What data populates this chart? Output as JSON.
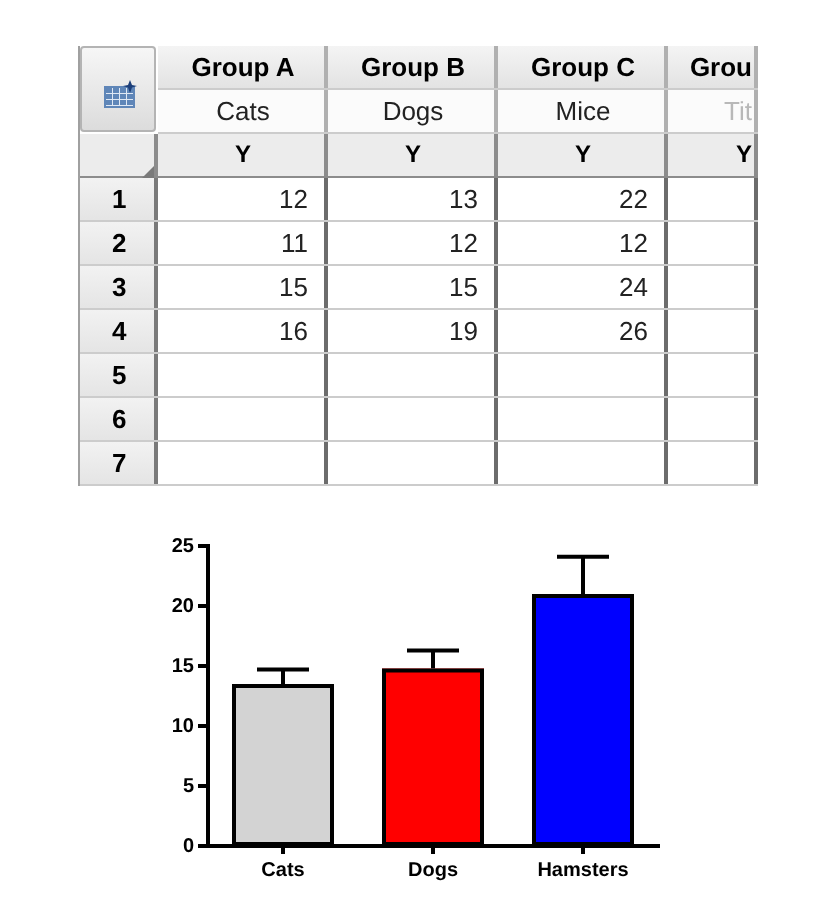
{
  "chart_data": [
    {
      "type": "heatmap",
      "categories": [
        "Group A",
        "Group B",
        "Group C",
        "Grou"
      ],
      "y_categories": [
        "1",
        "2",
        "3",
        "4",
        "5",
        "6",
        "7"
      ],
      "cells": [
        [
          12,
          13,
          22,
          null
        ],
        [
          11,
          12,
          12,
          null
        ],
        [
          15,
          15,
          24,
          null
        ],
        [
          16,
          19,
          26,
          null
        ],
        [
          null,
          null,
          null,
          null
        ],
        [
          null,
          null,
          null,
          null
        ],
        [
          null,
          null,
          null,
          null
        ]
      ],
      "data_labels": true,
      "annotations": [
        "Cats",
        "Dogs",
        "Mice",
        "Tit",
        "Y",
        "Y",
        "Y",
        "Y"
      ]
    },
    {
      "type": "bar",
      "categories": [
        "Cats",
        "Dogs",
        "Hamsters"
      ],
      "values": [
        13.5,
        14.8,
        21
      ],
      "colors": [
        "#d3d3d3",
        "#ff0000",
        "#0000ff"
      ],
      "errors": [
        [
          13.5,
          14.7
        ],
        [
          14.8,
          16.3
        ],
        [
          21,
          24.1
        ]
      ],
      "ylim": [
        0,
        25
      ],
      "yticks": [
        0,
        5,
        10,
        15,
        20,
        25
      ]
    }
  ]
}
